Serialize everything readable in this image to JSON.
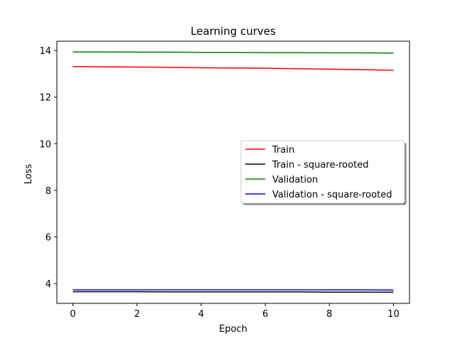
{
  "chart_data": {
    "type": "line",
    "title": "Learning curves",
    "xlabel": "Epoch",
    "ylabel": "Loss",
    "xlim": [
      -0.5,
      10.5
    ],
    "ylim": [
      3.15,
      14.4
    ],
    "xticks": [
      0,
      2,
      4,
      6,
      8,
      10
    ],
    "yticks": [
      4,
      6,
      8,
      10,
      12,
      14
    ],
    "grid": false,
    "legend_position": "center-right",
    "x": [
      0,
      1,
      2,
      3,
      4,
      5,
      6,
      7,
      8,
      9,
      10
    ],
    "series": [
      {
        "name": "Train",
        "color": "#ff0000",
        "values": [
          13.31,
          13.3,
          13.29,
          13.28,
          13.26,
          13.25,
          13.24,
          13.22,
          13.2,
          13.18,
          13.15
        ]
      },
      {
        "name": "Train - square-rooted",
        "color": "#000000",
        "values": [
          3.65,
          3.65,
          3.65,
          3.64,
          3.64,
          3.64,
          3.64,
          3.64,
          3.63,
          3.63,
          3.63
        ]
      },
      {
        "name": "Validation",
        "color": "#008000",
        "values": [
          13.94,
          13.94,
          13.93,
          13.93,
          13.92,
          13.92,
          13.91,
          13.91,
          13.9,
          13.9,
          13.89
        ]
      },
      {
        "name": "Validation - square-rooted",
        "color": "#0000ff",
        "values": [
          3.73,
          3.73,
          3.73,
          3.73,
          3.73,
          3.73,
          3.73,
          3.73,
          3.73,
          3.73,
          3.72
        ]
      }
    ]
  }
}
